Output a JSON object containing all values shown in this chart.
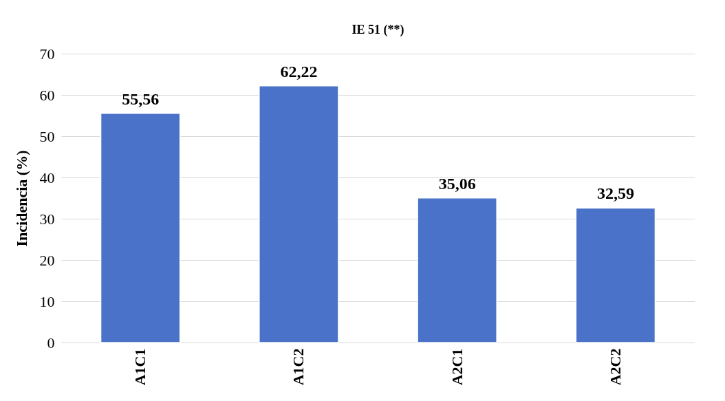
{
  "chart_data": {
    "type": "bar",
    "title": "IE 51 (**)",
    "ylabel": "Incidencia (%)",
    "categories": [
      "A1C1",
      "A1C2",
      "A2C1",
      "A2C2"
    ],
    "values": [
      55.56,
      62.22,
      35.06,
      32.59
    ],
    "value_labels": [
      "55,56",
      "62,22",
      "35,06",
      "32,59"
    ],
    "color": "#4a72c8",
    "ylim": [
      0,
      70
    ],
    "yticks": [
      0,
      10,
      20,
      30,
      40,
      50,
      60,
      70
    ],
    "grid": "y"
  }
}
